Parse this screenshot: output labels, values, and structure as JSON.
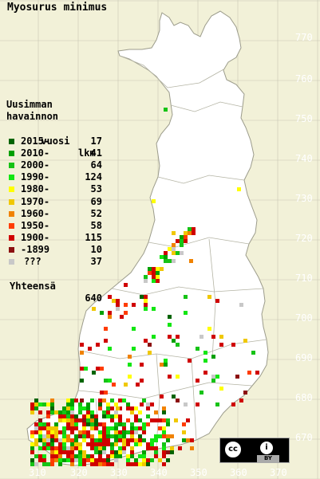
{
  "title": "Myosurus minimus",
  "legend": {
    "header1": "Uusimman",
    "header2": "havainnon",
    "header3": "vuosi",
    "header_count": "lkm",
    "classes": [
      {
        "label": "2015-",
        "count": "17",
        "color": "#006400"
      },
      {
        "label": "2010-",
        "count": "41",
        "color": "#00a000"
      },
      {
        "label": "2000-",
        "count": "64",
        "color": "#16c316"
      },
      {
        "label": "1990-",
        "count": "124",
        "color": "#12e612"
      },
      {
        "label": "1980-",
        "count": "53",
        "color": "#ffff00"
      },
      {
        "label": "1970-",
        "count": "69",
        "color": "#f0c800"
      },
      {
        "label": "1960-",
        "count": "52",
        "color": "#f08200"
      },
      {
        "label": "1950-",
        "count": "58",
        "color": "#ff3c00"
      },
      {
        "label": "1900-",
        "count": "115",
        "color": "#d00000"
      },
      {
        "label": "-1899",
        "count": "10",
        "color": "#8c1010"
      },
      {
        "label": "???",
        "count": "37",
        "color": "#c8c8c8"
      }
    ],
    "total_label": "Yhteensä",
    "total_count": "640"
  },
  "y_ticks": [
    "770",
    "760",
    "750",
    "740",
    "730",
    "720",
    "710",
    "700",
    "690",
    "680",
    "670"
  ],
  "x_ticks": [
    "310",
    "320",
    "330",
    "340",
    "350",
    "360",
    "370"
  ],
  "license": {
    "cc_symbol": "cc",
    "by_symbol": "i",
    "by_text": "BY"
  },
  "colors": {
    "background": "#f2f1d8",
    "land": "#ffffff",
    "grid": "#c8c8b4"
  }
}
